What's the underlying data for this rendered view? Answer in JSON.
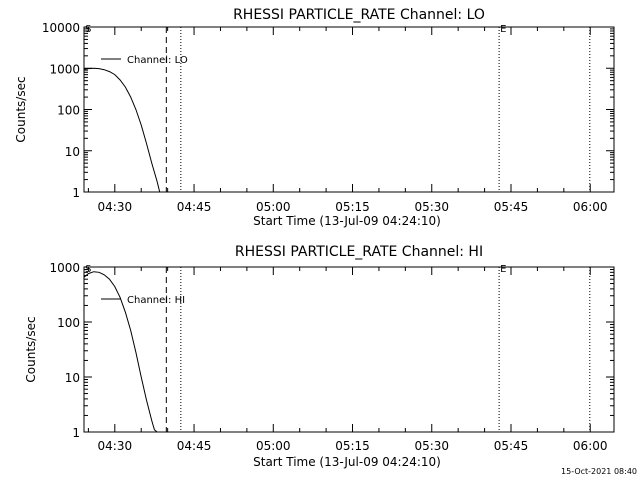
{
  "footer": {
    "timestamp": "15-Oct-2021 08:40"
  },
  "chart_data": [
    {
      "type": "line",
      "title": "RHESSI PARTICLE_RATE Channel: LO",
      "xlabel": "Start Time (13-Jul-09 04:24:10)",
      "ylabel": "Counts/sec",
      "y_scale": "log",
      "ylim": [
        1,
        10000
      ],
      "xlim": [
        "04:24:10",
        "06:04:30"
      ],
      "x_ticks": [
        "04:30",
        "04:45",
        "05:00",
        "05:15",
        "05:30",
        "05:45",
        "06:00"
      ],
      "y_ticks": [
        "1",
        "10",
        "100",
        "1000",
        "10000"
      ],
      "grid": false,
      "legend": {
        "position": "top-left",
        "entries": [
          "Channel: LO"
        ]
      },
      "annotations": [
        {
          "text": "S",
          "x": "04:24:10"
        },
        {
          "text": "E",
          "x": "05:42:45"
        }
      ],
      "vertical_lines": [
        {
          "x": "04:39:45",
          "style": "dashed"
        },
        {
          "x": "04:42:30",
          "style": "dotted"
        },
        {
          "x": "05:42:45",
          "style": "dotted"
        },
        {
          "x": "05:59:55",
          "style": "dotted"
        }
      ],
      "series": [
        {
          "name": "Channel: LO",
          "x": [
            "04:24:10",
            "04:25:00",
            "04:26:00",
            "04:27:00",
            "04:28:00",
            "04:29:00",
            "04:30:00",
            "04:31:00",
            "04:32:00",
            "04:33:00",
            "04:34:00",
            "04:35:00",
            "04:36:00",
            "04:37:00",
            "04:38:00",
            "04:38:30"
          ],
          "y": [
            950,
            980,
            1000,
            980,
            920,
            830,
            700,
            520,
            350,
            200,
            100,
            42,
            15,
            5,
            1.8,
            1
          ]
        }
      ]
    },
    {
      "type": "line",
      "title": "RHESSI PARTICLE_RATE Channel: HI",
      "xlabel": "Start Time (13-Jul-09 04:24:10)",
      "ylabel": "Counts/sec",
      "y_scale": "log",
      "ylim": [
        1,
        1000
      ],
      "xlim": [
        "04:24:10",
        "06:04:30"
      ],
      "x_ticks": [
        "04:30",
        "04:45",
        "05:00",
        "05:15",
        "05:30",
        "05:45",
        "06:00"
      ],
      "y_ticks": [
        "1",
        "10",
        "100",
        "1000"
      ],
      "grid": false,
      "legend": {
        "position": "top-left",
        "entries": [
          "Channel: HI"
        ]
      },
      "annotations": [
        {
          "text": "S",
          "x": "04:24:10"
        },
        {
          "text": "E",
          "x": "05:42:45"
        }
      ],
      "vertical_lines": [
        {
          "x": "04:39:45",
          "style": "dashed"
        },
        {
          "x": "04:42:30",
          "style": "dotted"
        },
        {
          "x": "05:42:45",
          "style": "dotted"
        },
        {
          "x": "05:59:55",
          "style": "dotted"
        }
      ],
      "series": [
        {
          "name": "Channel: HI",
          "x": [
            "04:24:10",
            "04:25:00",
            "04:26:00",
            "04:27:00",
            "04:28:00",
            "04:29:00",
            "04:30:00",
            "04:31:00",
            "04:32:00",
            "04:33:00",
            "04:34:00",
            "04:35:00",
            "04:36:00",
            "04:37:00",
            "04:37:30",
            "04:38:00"
          ],
          "y": [
            650,
            760,
            820,
            800,
            720,
            600,
            440,
            280,
            150,
            70,
            28,
            10,
            3.8,
            1.6,
            1.1,
            1
          ]
        }
      ]
    }
  ]
}
